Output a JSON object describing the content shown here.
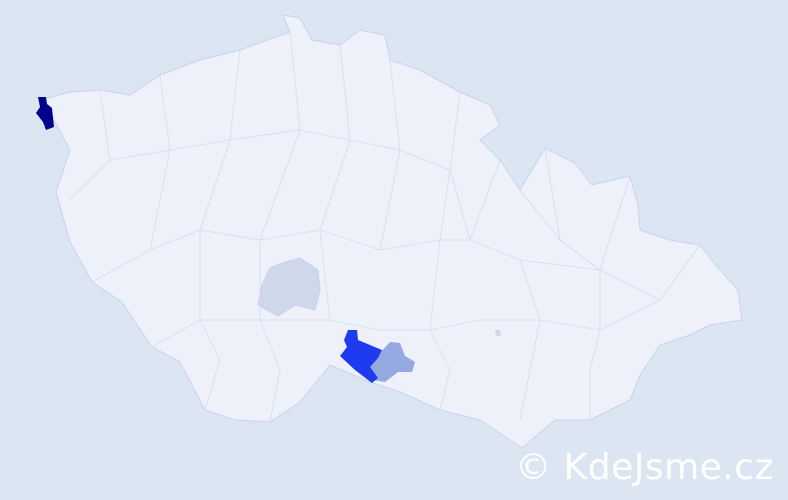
{
  "map": {
    "colors": {
      "background": "#dce6f3",
      "country_fill": "#eef1fa",
      "border": "#c9d2ec",
      "level_highest": "#00008b",
      "level_high": "#1f3bef",
      "level_mid": "#94a9e0",
      "level_low": "#cfd7ea"
    },
    "highlighted_districts": [
      {
        "level": "highest"
      },
      {
        "level": "high"
      },
      {
        "level": "mid"
      },
      {
        "level": "low"
      },
      {
        "level": "low"
      }
    ]
  },
  "watermark": {
    "text": "© KdeJsme.cz"
  }
}
